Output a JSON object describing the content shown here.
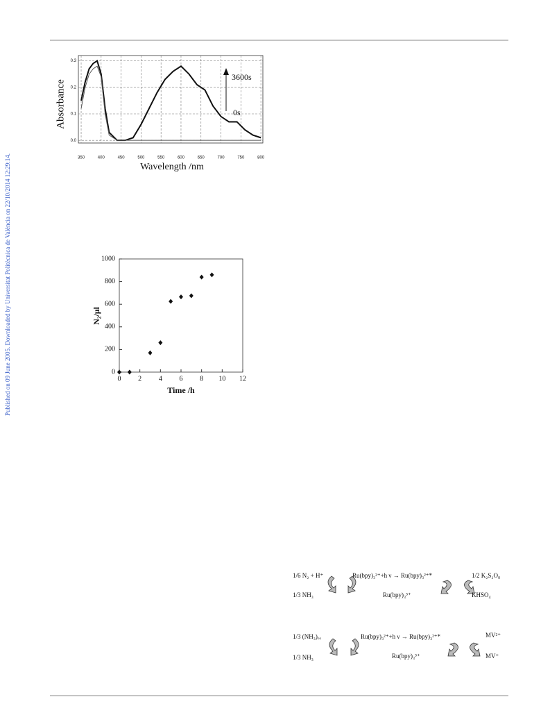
{
  "side_note": "Published on 09 June 2005. Downloaded by Universitat Politècnica de València on 22/10/2014 12:29:14.",
  "chart_data": [
    {
      "type": "line",
      "ylabel": "Absorbance",
      "xlabel": "Wavelength /nm",
      "annotations": [
        "3600s",
        "0s"
      ],
      "x": [
        350,
        360,
        370,
        380,
        390,
        400,
        410,
        420,
        440,
        460,
        480,
        500,
        520,
        540,
        560,
        580,
        600,
        620,
        640,
        660,
        680,
        700,
        720,
        740,
        760,
        780,
        800
      ],
      "series": [
        {
          "name": "3600s",
          "color": "#111111",
          "values": [
            0.15,
            0.22,
            0.27,
            0.29,
            0.3,
            0.25,
            0.12,
            0.03,
            0.0,
            0.0,
            0.01,
            0.06,
            0.12,
            0.18,
            0.23,
            0.26,
            0.28,
            0.25,
            0.21,
            0.19,
            0.13,
            0.09,
            0.07,
            0.07,
            0.04,
            0.02,
            0.01
          ]
        },
        {
          "name": "0s",
          "color": "#555555",
          "values": [
            0.12,
            0.2,
            0.25,
            0.27,
            0.28,
            0.24,
            0.1,
            0.02,
            0.0,
            0.0,
            0.0,
            0.0,
            0.0,
            0.0,
            0.0,
            0.0,
            0.0,
            0.0,
            0.0,
            0.0,
            0.0,
            0.0,
            0.0,
            0.0,
            0.0,
            0.0,
            0.0
          ]
        }
      ],
      "xlim": [
        343,
        805
      ],
      "xticks": [
        350,
        400,
        450,
        500,
        550,
        600,
        650,
        700,
        750,
        800
      ],
      "ylim": [
        -0.01,
        0.32
      ],
      "yticks": [
        {
          "value": 0,
          "label": "0.0"
        },
        0.1,
        0.2,
        0.3
      ],
      "grid": true
    },
    {
      "type": "scatter",
      "ylabel": "N₂/μl",
      "xlabel": "Time /h",
      "x": [
        0,
        1,
        3,
        4,
        5,
        6,
        7,
        8,
        9
      ],
      "values": [
        0,
        0,
        170,
        260,
        625,
        665,
        675,
        840,
        860
      ],
      "color": "#111111",
      "xlim": [
        0,
        12
      ],
      "xticks": [
        0,
        2,
        4,
        6,
        8,
        10,
        12
      ],
      "ylim": [
        0,
        1000
      ],
      "yticks": [
        0,
        200,
        400,
        600,
        800,
        1000
      ],
      "grid": false
    }
  ],
  "schemes": [
    {
      "left_top": "1/6 N₂ + H⁺",
      "left_bottom": "1/3   NH₃",
      "center_top": "Ru(bpy)₃²⁺+h ν →  Ru(bpy)₃²⁺*",
      "center_bottom": "Ru(bpy)₃³⁺",
      "right_top": "1/2 K₂S₂O₈",
      "right_bottom": "KHSO₄"
    },
    {
      "left_top": "1/3 (NH₃)ₒₓ",
      "left_bottom": "1/3 NH₃",
      "center_top": "Ru(bpy)₃²⁺+h ν →  Ru(bpy)₃²⁺*",
      "center_bottom": "Ru(bpy)₃³⁺",
      "right_top": "MV²⁺",
      "right_bottom": "MV⁺"
    }
  ]
}
